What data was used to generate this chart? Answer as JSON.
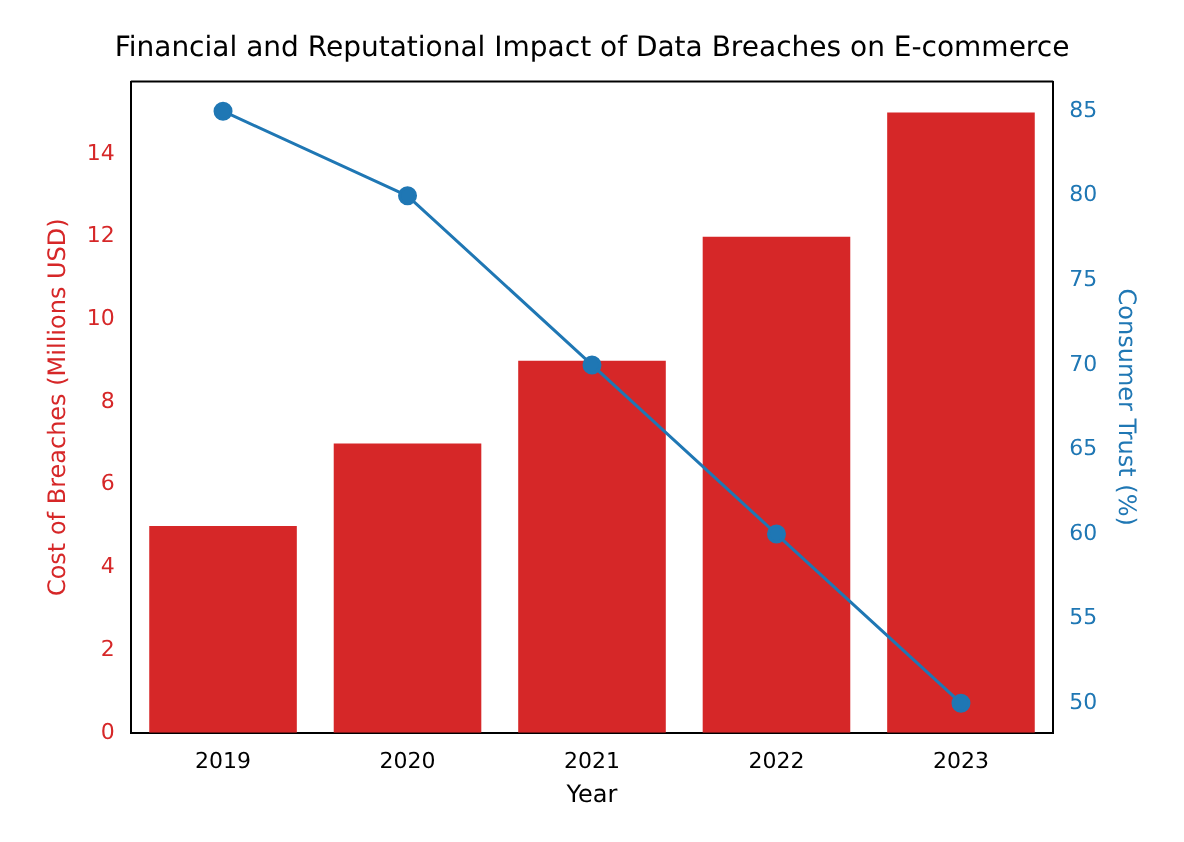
{
  "chart_data": {
    "type": "bar",
    "title": "Financial and Reputational Impact of Data Breaches on E-commerce",
    "xlabel": "Year",
    "ylabel": "Cost of Breaches (Millions USD)",
    "y2label": "Consumer Trust (%)",
    "categories": [
      "2019",
      "2020",
      "2021",
      "2022",
      "2023"
    ],
    "series": [
      {
        "color": "#d62728",
        "values": [
          5,
          7,
          9,
          12,
          15
        ]
      },
      {
        "type": "line",
        "axis": "y2",
        "color": "#1f77b4",
        "values": [
          85,
          80,
          70,
          60,
          50
        ]
      }
    ],
    "ylim": [
      0,
      15.75
    ],
    "yticks": [
      0,
      2,
      4,
      6,
      8,
      10,
      12,
      14
    ],
    "y2lim": [
      48.25,
      86.75
    ],
    "y2ticks": [
      50,
      55,
      60,
      65,
      70,
      75,
      80,
      85
    ],
    "marker": "circle",
    "line_style": "solid"
  }
}
